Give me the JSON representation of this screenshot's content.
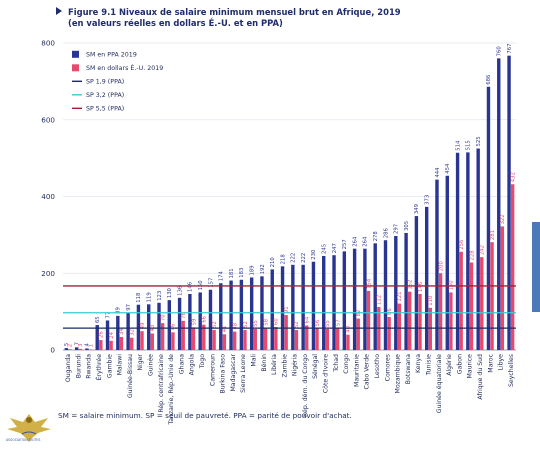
{
  "figure": {
    "title": "Figure 9.1  Niveaux de salaire minimum mensuel brut en Afrique, 2019",
    "subtitle": "(en valeurs réelles en dollars É.-U. et en PPA)",
    "note": "SM = salaire minimum. SP = seuil de pauvreté. PPA = parité de pouvoir d'achat."
  },
  "colors": {
    "ppa": "#2a3591",
    "usd": "#e84a6d",
    "line_19": "#1c2866",
    "line_32": "#35cdd6",
    "line_55": "#a3203a",
    "axis_text": "#1e2a5a",
    "grid": "#e2e5ee",
    "side_tab": "#4e79b8"
  },
  "chart_data": {
    "type": "bar",
    "title": "Niveaux de salaire minimum mensuel brut en Afrique, 2019",
    "ylim": [
      0,
      800
    ],
    "yticks": [
      0,
      200,
      400,
      600,
      800
    ],
    "grid": true,
    "legend_position": "top-left",
    "categories": [
      "Ouganda",
      "Burundi",
      "Rwanda",
      "Érythrée",
      "Gambie",
      "Malawi",
      "Guinée-Bissau",
      "Niger",
      "Guinée",
      "Rép. centrafricaine",
      "Tanzanie, Rép.-Unie de",
      "Ghana",
      "Angola",
      "Togo",
      "Cameroun",
      "Burkina Faso",
      "Madagascar",
      "Sierra Leone",
      "Mali",
      "Bénin",
      "Libéria",
      "Zambie",
      "Nigéria",
      "Rép. dém. du Congo",
      "Sénégal",
      "Côte d'Ivoire",
      "Tchad",
      "Congo",
      "Mauritanie",
      "Cabo Verde",
      "Lesotho",
      "Comores",
      "Mozambique",
      "Botswana",
      "Kenya",
      "Tunisie",
      "Guinée équatoriale",
      "Algérie",
      "Gabon",
      "Maurice",
      "Afrique du Sud",
      "Maroc",
      "Libye",
      "Seychelles"
    ],
    "series": [
      {
        "name": "SM en PPA 2019",
        "values": [
          5,
          7,
          4,
          65,
          77,
          89,
          97,
          118,
          119,
          123,
          130,
          136,
          146,
          150,
          157,
          174,
          181,
          183,
          189,
          192,
          210,
          218,
          222,
          222,
          230,
          245,
          247,
          257,
          264,
          264,
          278,
          286,
          297,
          305,
          349,
          373,
          444,
          454,
          514,
          515,
          525,
          686,
          760,
          767
        ]
      },
      {
        "name": "SM en dollars É.-U. 2019",
        "values": [
          2,
          3,
          1,
          26,
          24,
          34,
          32,
          49,
          43,
          70,
          46,
          76,
          59,
          66,
          52,
          41,
          48,
          52,
          55,
          58,
          60,
          91,
          52,
          64,
          56,
          55,
          57,
          40,
          82,
          154,
          112,
          86,
          121,
          152,
          146,
          110,
          200,
          150,
          256,
          228,
          242,
          281,
          322,
          432
        ]
      }
    ],
    "ppa_labels": [
      "5",
      "7",
      "4",
      "65",
      "77",
      "89",
      "97",
      "118",
      "119",
      "123",
      "130",
      "136",
      "146",
      "150",
      "157",
      "174",
      "181",
      "183",
      "189",
      "192",
      "210",
      "218",
      "222",
      "222",
      "230",
      "245",
      "247",
      "257",
      "264",
      "264",
      "278",
      "286",
      "297",
      "305",
      "349",
      "373",
      "444",
      "454",
      "514",
      "515",
      "525",
      "686",
      "760",
      "767"
    ],
    "usd_labels": [
      "2",
      "3",
      "1",
      "26",
      "24",
      "34",
      "32",
      "49",
      "43",
      "70",
      "46",
      "76",
      "59",
      "66",
      "52",
      "41",
      "48",
      "52",
      "55",
      "58",
      "60",
      "91",
      "52",
      "64",
      "56",
      "55",
      "57",
      "40",
      "82",
      "154",
      "112",
      "86",
      "121",
      "152",
      "146",
      "110",
      "200",
      "150",
      "256",
      "228",
      "242",
      "281",
      "322",
      "432"
    ],
    "reference_lines": [
      {
        "name": "SP 1,9 (PPA)",
        "value": 57
      },
      {
        "name": "SP 3,2 (PPA)",
        "value": 97
      },
      {
        "name": "SP 5,5 (PPA)",
        "value": 167
      }
    ]
  }
}
